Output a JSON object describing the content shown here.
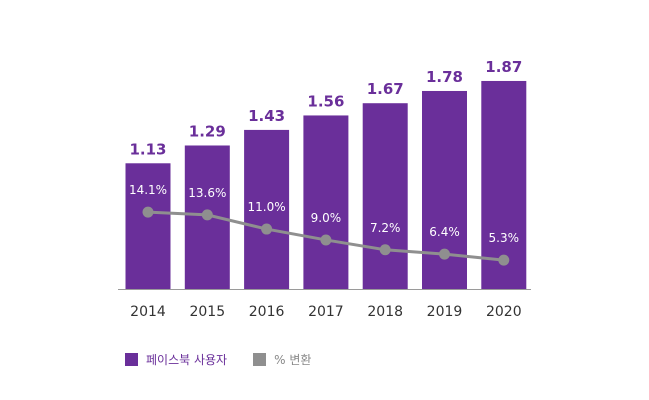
{
  "chart_data": {
    "type": "bar",
    "categories": [
      "2014",
      "2015",
      "2016",
      "2017",
      "2018",
      "2019",
      "2020"
    ],
    "series": [
      {
        "name": "페이스북 사용자",
        "kind": "bar",
        "color": "#6a2f9a",
        "values": [
          1.13,
          1.29,
          1.43,
          1.56,
          1.67,
          1.78,
          1.87
        ],
        "labels": [
          "1.13",
          "1.29",
          "1.43",
          "1.56",
          "1.67",
          "1.78",
          "1.87"
        ]
      },
      {
        "name": "% 변환",
        "kind": "line",
        "color": "#8f8f8f",
        "values": [
          14.1,
          13.6,
          11.0,
          9.0,
          7.2,
          6.4,
          5.3
        ],
        "labels": [
          "14.1%",
          "13.6%",
          "11.0%",
          "9.0%",
          "7.2%",
          "6.4%",
          "5.3%"
        ]
      }
    ],
    "title": "",
    "xlabel": "",
    "ylabel": "",
    "ylim": [
      0,
      2.4
    ],
    "y2lim": [
      0,
      49
    ],
    "grid": false,
    "legend": "bottom-left"
  }
}
